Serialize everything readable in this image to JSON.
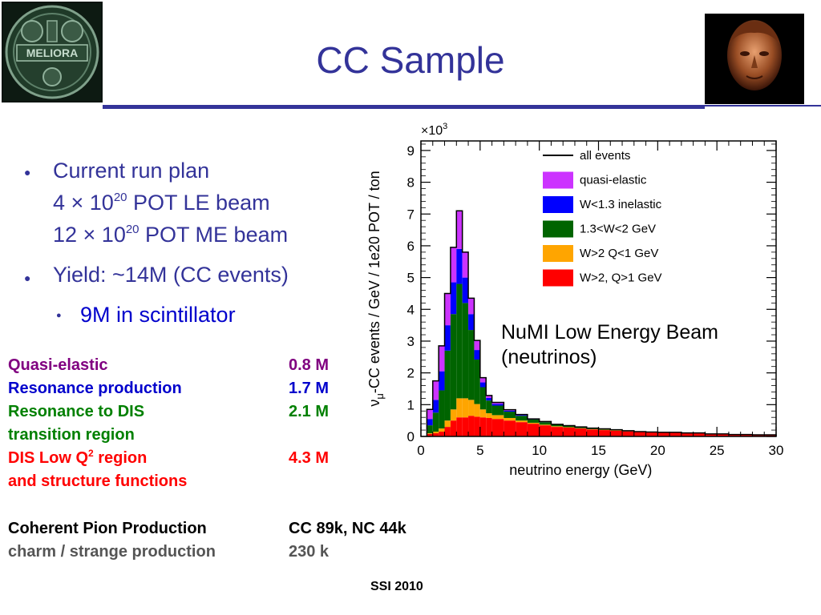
{
  "title": "CC Sample",
  "logos": {
    "left": {
      "text": "MELIORA",
      "icon": "meliora-seal-logo"
    },
    "right": {
      "icon": "bronze-head-logo"
    }
  },
  "bullets": [
    {
      "text": "Current run plan",
      "lines": [
        {
          "pre": "4 × 10",
          "sup": "20",
          "post": " POT LE beam"
        },
        {
          "pre": "12 × 10",
          "sup": "20",
          "post": " POT ME beam"
        }
      ]
    },
    {
      "text": "Yield: ~14M (CC events)",
      "sub": "9M in scintillator"
    }
  ],
  "table": {
    "rows": [
      {
        "label": "Quasi-elastic",
        "value": "0.8 M",
        "color": "#800080"
      },
      {
        "label": "Resonance production",
        "value": "1.7 M",
        "color": "#0000cc"
      },
      {
        "label": "Resonance to DIS",
        "label2": "transition region",
        "value": "2.1 M",
        "color": "#008000"
      },
      {
        "label_pre": "DIS Low Q",
        "label_sup": "2",
        "label_post": " region",
        "label2": "and structure functions",
        "value": "4.3 M",
        "color": "#ff0000"
      },
      {
        "label": "Coherent Pion Production",
        "value": "CC 89k, NC 44k",
        "color": "#000000"
      },
      {
        "label": "charm / strange production",
        "value": "230 k",
        "color": "#555555"
      }
    ]
  },
  "annotation": {
    "line1": "NuMI Low Energy Beam",
    "line2": "(neutrinos)"
  },
  "footer": "SSI 2010",
  "chart_data": {
    "type": "bar",
    "stacked": true,
    "x_bin_edges": [
      0.5,
      1,
      1.5,
      2,
      2.5,
      3,
      3.5,
      4,
      4.5,
      5,
      5.5,
      6,
      7,
      8,
      9,
      10,
      11,
      12,
      13,
      14,
      15,
      16,
      17,
      18,
      19,
      20,
      22,
      24,
      26,
      28,
      30
    ],
    "xlabel": "neutrino energy (GeV)",
    "ylabel": "ν_μ-CC events / GeV / 1e20 POT / ton",
    "ylabel_parts": {
      "pre": "ν",
      "sub": "μ",
      "post": "-CC events / GeV / 1e20 POT / ton"
    },
    "y_multiplier": "×10",
    "y_multiplier_exp": "3",
    "xlim": [
      0,
      30
    ],
    "ylim": [
      0,
      9.3
    ],
    "xticks": [
      0,
      5,
      10,
      15,
      20,
      25,
      30
    ],
    "yticks": [
      0,
      1,
      2,
      3,
      4,
      5,
      6,
      7,
      8,
      9
    ],
    "legend_position": "top-right",
    "legend_line": "all events",
    "series": [
      {
        "name": "W>2, Q>1 GeV",
        "color": "#ff0000",
        "values": [
          0.08,
          0.1,
          0.15,
          0.3,
          0.5,
          0.6,
          0.6,
          0.65,
          0.62,
          0.6,
          0.58,
          0.55,
          0.5,
          0.45,
          0.4,
          0.35,
          0.3,
          0.28,
          0.25,
          0.22,
          0.2,
          0.18,
          0.16,
          0.14,
          0.13,
          0.12,
          0.1,
          0.08,
          0.06,
          0.05
        ]
      },
      {
        "name": "W>2 Q<1 GeV",
        "color": "#ffa500",
        "values": [
          0.02,
          0.05,
          0.1,
          0.2,
          0.35,
          0.6,
          0.6,
          0.5,
          0.4,
          0.25,
          0.15,
          0.12,
          0.08,
          0.05,
          0.03,
          0.02,
          0.02,
          0.01,
          0.01,
          0.01,
          0.01,
          0.01,
          0,
          0,
          0,
          0,
          0,
          0,
          0,
          0
        ]
      },
      {
        "name": "1.3<W<2 GeV",
        "color": "#006400",
        "values": [
          0.25,
          0.6,
          1.2,
          2.2,
          3.0,
          3.6,
          3.0,
          2.2,
          1.4,
          0.7,
          0.4,
          0.3,
          0.2,
          0.15,
          0.1,
          0.08,
          0.06,
          0.05,
          0.04,
          0.03,
          0.03,
          0.02,
          0.02,
          0.01,
          0.01,
          0.01,
          0.01,
          0,
          0,
          0
        ]
      },
      {
        "name": "W<1.3 inelastic",
        "color": "#0000ff",
        "values": [
          0.2,
          0.4,
          0.6,
          0.8,
          1.0,
          1.1,
          0.8,
          0.5,
          0.3,
          0.15,
          0.08,
          0.05,
          0.03,
          0.02,
          0.01,
          0.01,
          0,
          0,
          0,
          0,
          0,
          0,
          0,
          0,
          0,
          0,
          0,
          0,
          0,
          0
        ]
      },
      {
        "name": "quasi-elastic",
        "color": "#cc33ff",
        "values": [
          0.3,
          0.6,
          0.8,
          1.0,
          1.1,
          1.2,
          0.8,
          0.5,
          0.3,
          0.15,
          0.08,
          0.05,
          0.03,
          0.02,
          0.01,
          0.01,
          0,
          0,
          0,
          0,
          0,
          0,
          0,
          0,
          0,
          0,
          0,
          0,
          0,
          0
        ]
      }
    ]
  }
}
